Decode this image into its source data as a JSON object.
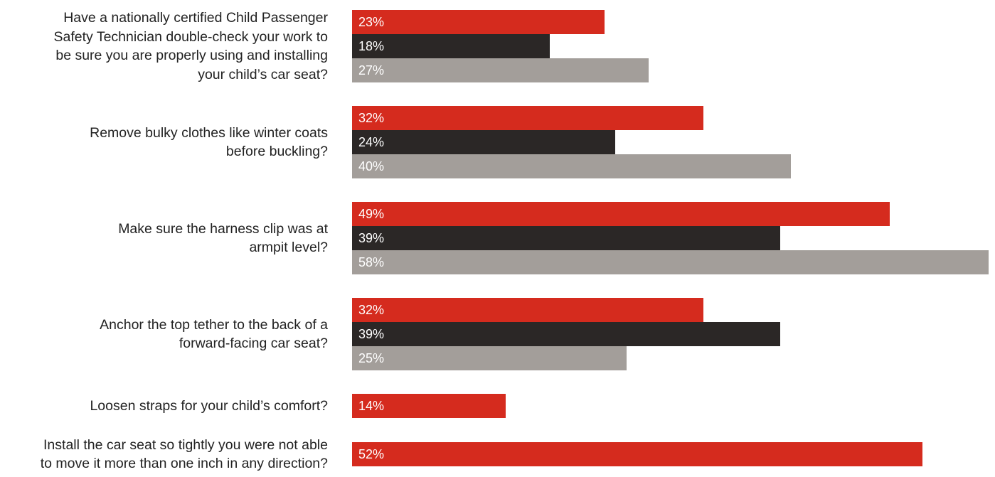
{
  "chart_data": {
    "type": "bar",
    "orientation": "horizontal",
    "title": "",
    "xlabel": "",
    "ylabel": "",
    "xlim": [
      0,
      58
    ],
    "grid": false,
    "legend": "none",
    "categories": [
      "Have a nationally certified Child Passenger Safety Technician double-check your work to be sure you are properly using and installing your child’s car seat?",
      "Remove bulky clothes like winter coats before buckling?",
      "Make sure the harness clip was at armpit level?",
      "Anchor the top tether to the back of a forward-facing car seat?",
      "Loosen straps for your child’s comfort?",
      "Install the car seat so tightly you were not able to move it more than one inch in any direction?"
    ],
    "category_lines": [
      [
        "Have a nationally certified Child Passenger",
        "Safety Technician double-check your work to",
        "be sure you are properly using and installing",
        "your child’s car seat?"
      ],
      [
        "Remove bulky clothes like winter coats",
        "before buckling?"
      ],
      [
        "Make sure the harness clip was at",
        "armpit level?"
      ],
      [
        "Anchor the top tether to the back of a",
        "forward-facing car seat?"
      ],
      [
        "Loosen straps for your child’s comfort?"
      ],
      [
        "Install the car seat so tightly you were not able",
        "to move it more than one inch in any direction?"
      ]
    ],
    "series": [
      {
        "color": "#d52b1e",
        "values": [
          23,
          32,
          49,
          32,
          14,
          52
        ]
      },
      {
        "color": "#2b2726",
        "values": [
          18,
          24,
          39,
          39,
          null,
          null
        ]
      },
      {
        "color": "#a39e9a",
        "values": [
          27,
          40,
          58,
          25,
          null,
          null
        ]
      }
    ],
    "value_labels": [
      [
        "23%",
        "18%",
        "27%"
      ],
      [
        "32%",
        "24%",
        "40%"
      ],
      [
        "49%",
        "39%",
        "58%"
      ],
      [
        "32%",
        "39%",
        "25%"
      ],
      [
        "14%"
      ],
      [
        "52%"
      ]
    ]
  }
}
